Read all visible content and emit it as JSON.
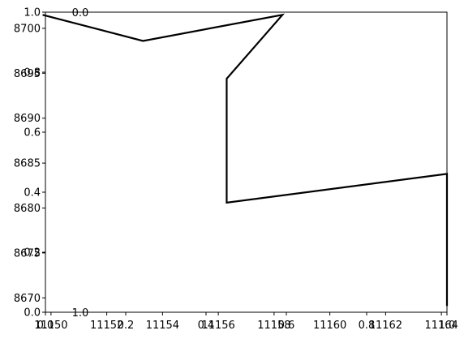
{
  "chart_data": {
    "type": "line",
    "title": "",
    "xlabel": "",
    "ylabel": "",
    "grid": false,
    "xlim": [
      11149.8,
      11164.2
    ],
    "ylim": [
      8668.4,
      8701.8
    ],
    "x_ticks": [
      {
        "value": 11150,
        "label": "11150"
      },
      {
        "value": 11152,
        "label": "11152"
      },
      {
        "value": 11154,
        "label": "11154"
      },
      {
        "value": 11156,
        "label": "11156"
      },
      {
        "value": 11158,
        "label": "11158"
      },
      {
        "value": 11160,
        "label": "11160"
      },
      {
        "value": 11162,
        "label": "11162"
      },
      {
        "value": 11164,
        "label": "11164"
      }
    ],
    "y_ticks": [
      {
        "value": 8670,
        "label": "8670"
      },
      {
        "value": 8675,
        "label": "8675"
      },
      {
        "value": 8680,
        "label": "8680"
      },
      {
        "value": 8685,
        "label": "8685"
      },
      {
        "value": 8690,
        "label": "8690"
      },
      {
        "value": 8695,
        "label": "8695"
      },
      {
        "value": 8700,
        "label": "8700"
      }
    ],
    "overlay_ticks": {
      "left": [
        "0.0",
        "0.2",
        "0.4",
        "0.6",
        "0.8",
        "1.0"
      ],
      "bottom": [
        "0.0",
        "0.2",
        "0.4",
        "0.6",
        "0.8",
        "1.0"
      ],
      "top_label": "0.0",
      "inner_bottom_label": "1.0"
    },
    "series": [
      {
        "color": "#000000",
        "x": [
          11149.7,
          11153.3,
          11158.3,
          11156.3,
          11156.3,
          11164.2,
          11164.2
        ],
        "y": [
          8701.5,
          8698.6,
          8701.5,
          8694.4,
          8680.6,
          8683.8,
          8669.1
        ]
      }
    ]
  }
}
